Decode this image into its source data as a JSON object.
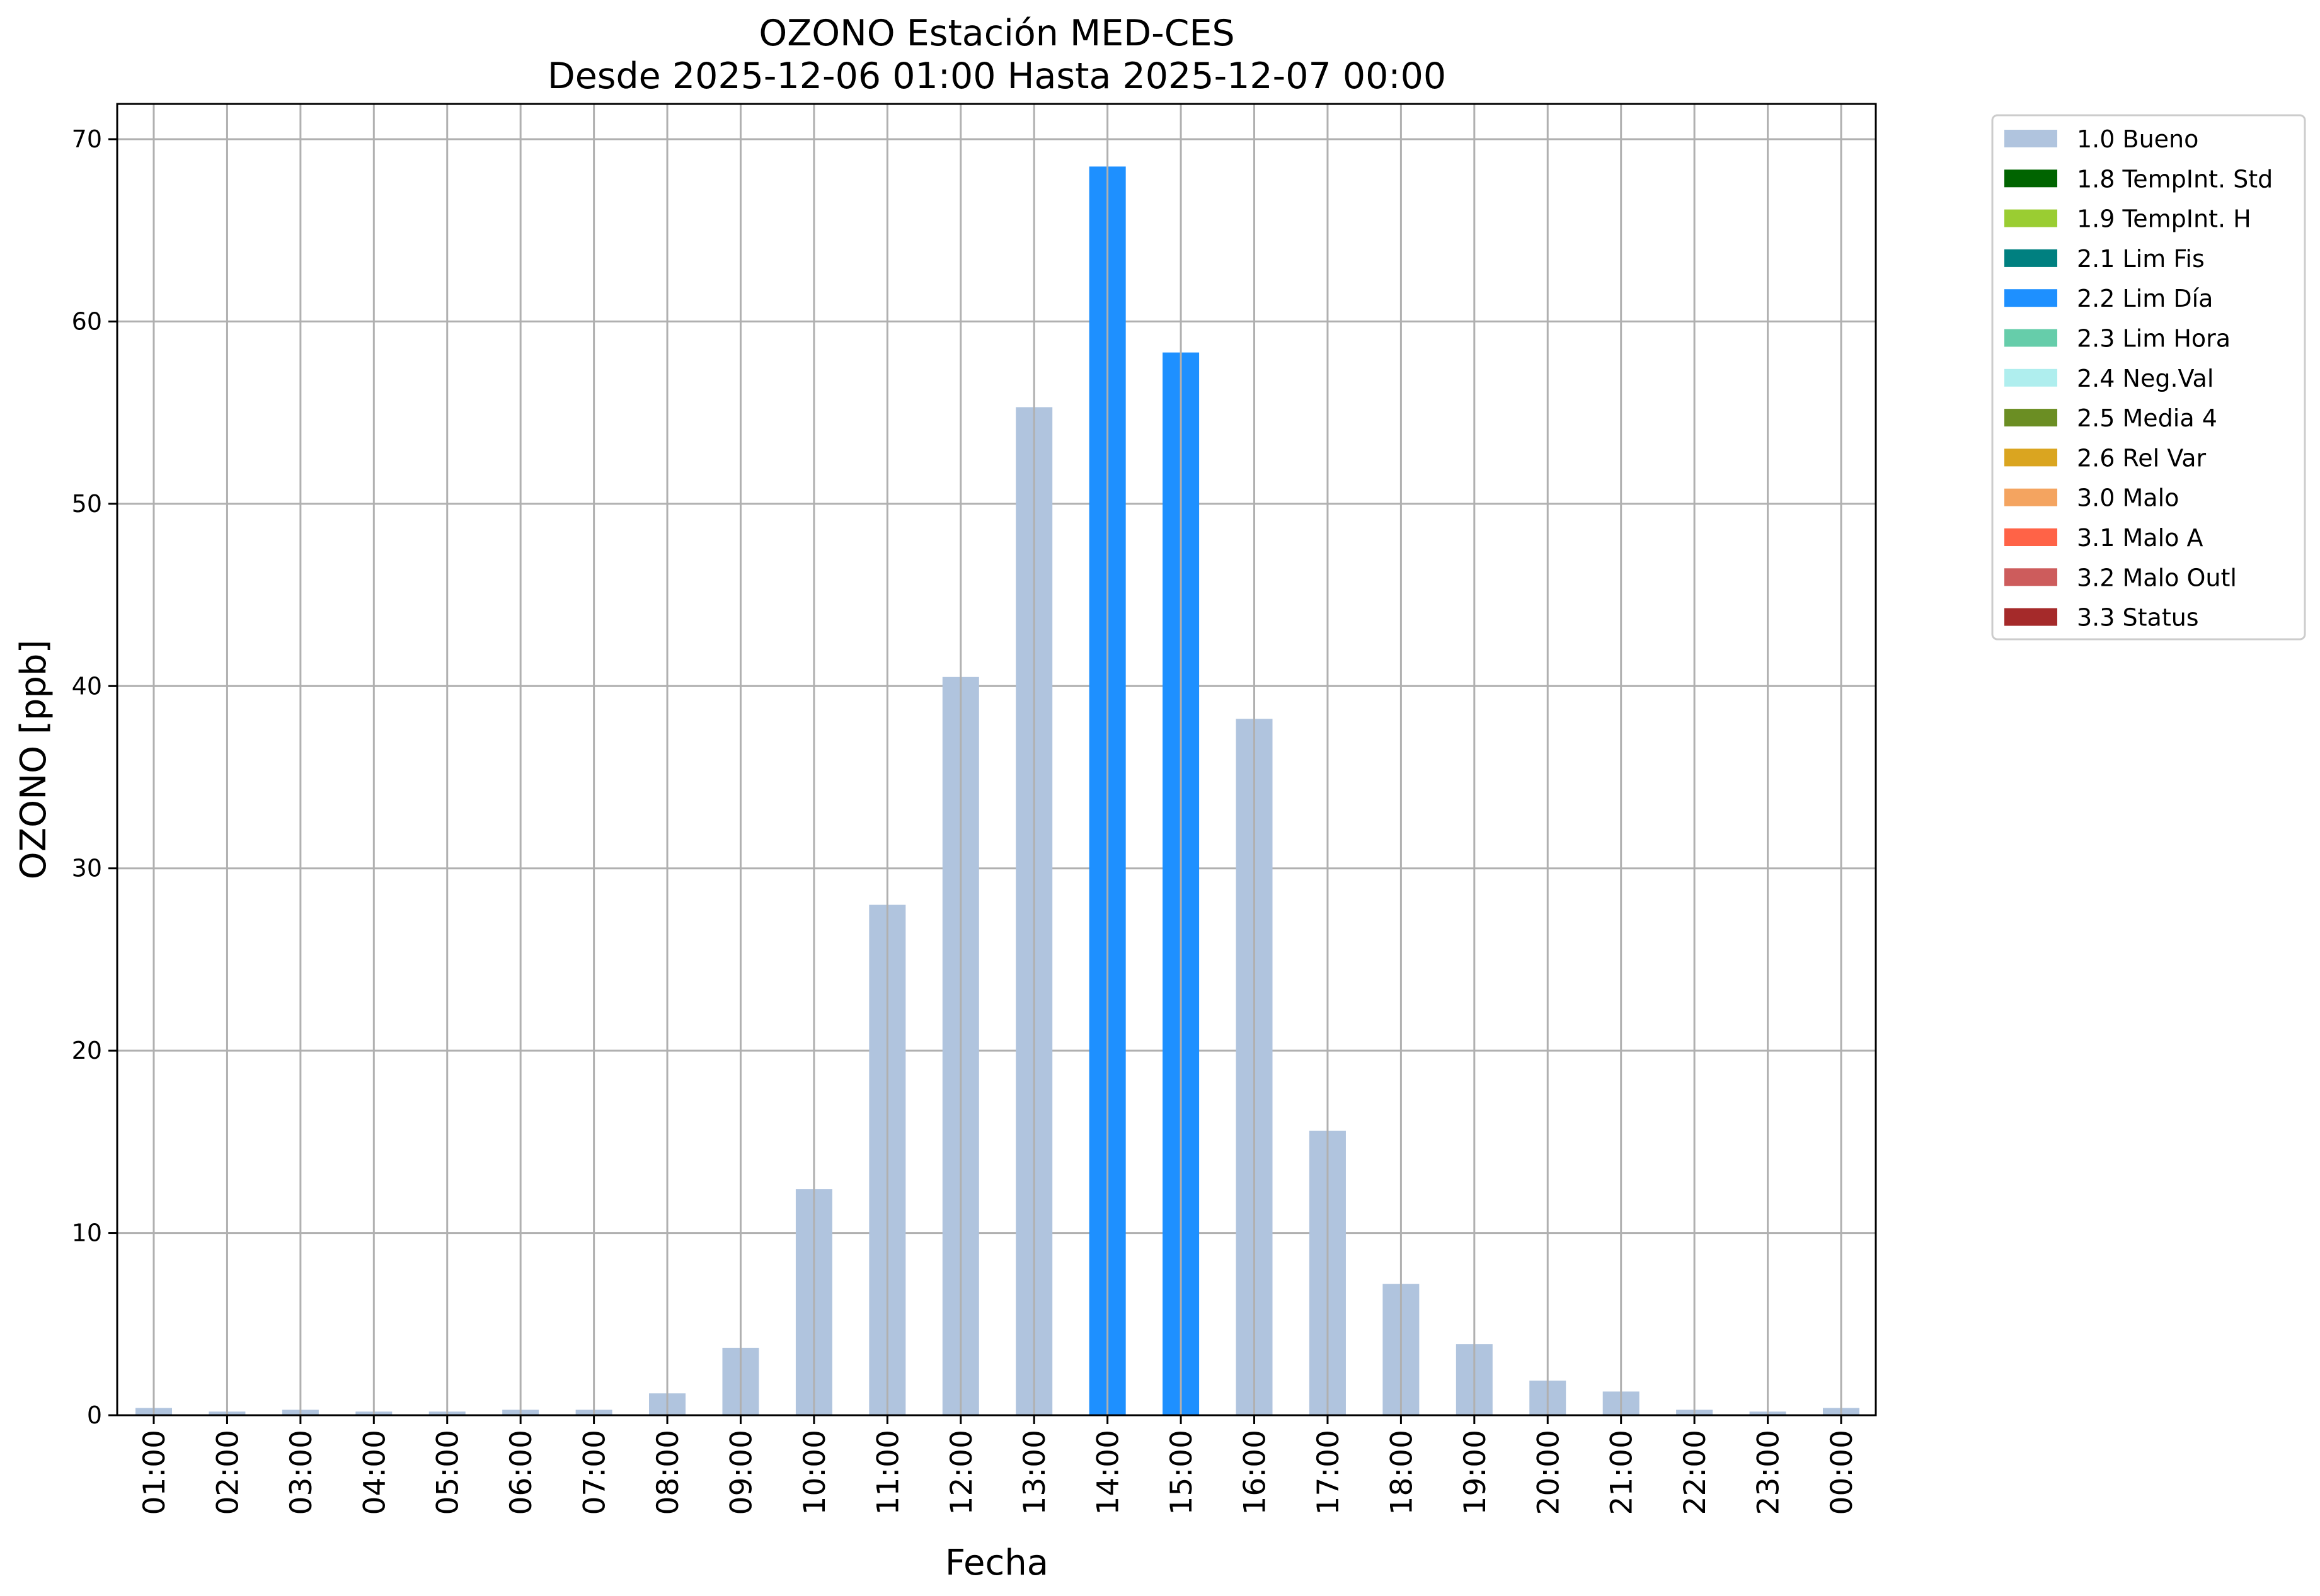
{
  "chart_data": {
    "type": "bar",
    "title": "OZONO Estación MED-CES",
    "subtitle": "Desde 2025-12-06 01:00 Hasta 2025-12-07 00:00",
    "xlabel": "Fecha",
    "ylabel": "OZONO [ppb]",
    "ylim": [
      0,
      72
    ],
    "yticks": [
      0,
      10,
      20,
      30,
      40,
      50,
      60,
      70
    ],
    "grid": true,
    "legend_position": "outside-top-right",
    "categories": [
      "01:00",
      "02:00",
      "03:00",
      "04:00",
      "05:00",
      "06:00",
      "07:00",
      "08:00",
      "09:00",
      "10:00",
      "11:00",
      "12:00",
      "13:00",
      "14:00",
      "15:00",
      "16:00",
      "17:00",
      "18:00",
      "19:00",
      "20:00",
      "21:00",
      "22:00",
      "23:00",
      "00:00"
    ],
    "values": [
      0.4,
      0.2,
      0.3,
      0.2,
      0.2,
      0.3,
      0.3,
      1.2,
      3.7,
      12.4,
      28.0,
      40.5,
      55.3,
      68.5,
      58.3,
      38.2,
      15.6,
      7.2,
      3.9,
      1.9,
      1.3,
      0.3,
      0.2,
      0.4
    ],
    "bar_flags": [
      "1.0 Bueno",
      "1.0 Bueno",
      "1.0 Bueno",
      "1.0 Bueno",
      "1.0 Bueno",
      "1.0 Bueno",
      "1.0 Bueno",
      "1.0 Bueno",
      "1.0 Bueno",
      "1.0 Bueno",
      "1.0 Bueno",
      "1.0 Bueno",
      "1.0 Bueno",
      "2.2 Lim Día",
      "2.2 Lim Día",
      "1.0 Bueno",
      "1.0 Bueno",
      "1.0 Bueno",
      "1.0 Bueno",
      "1.0 Bueno",
      "1.0 Bueno",
      "1.0 Bueno",
      "1.0 Bueno",
      "1.0 Bueno"
    ],
    "legend": [
      {
        "label": "1.0 Bueno",
        "color": "#b0c4de"
      },
      {
        "label": "1.8 TempInt. Std",
        "color": "#006400"
      },
      {
        "label": "1.9 TempInt. H",
        "color": "#9acd32"
      },
      {
        "label": "2.1 Lim Fis",
        "color": "#008080"
      },
      {
        "label": "2.2 Lim Día",
        "color": "#1e90ff"
      },
      {
        "label": "2.3 Lim Hora",
        "color": "#66cdaa"
      },
      {
        "label": "2.4 Neg.Val",
        "color": "#afeeee"
      },
      {
        "label": "2.5 Media 4",
        "color": "#6b8e23"
      },
      {
        "label": "2.6 Rel Var",
        "color": "#daa520"
      },
      {
        "label": "3.0 Malo",
        "color": "#f4a460"
      },
      {
        "label": "3.1 Malo A",
        "color": "#ff6347"
      },
      {
        "label": "3.2 Malo Outl",
        "color": "#cd5c5c"
      },
      {
        "label": "3.3 Status",
        "color": "#a52a2a"
      }
    ]
  }
}
